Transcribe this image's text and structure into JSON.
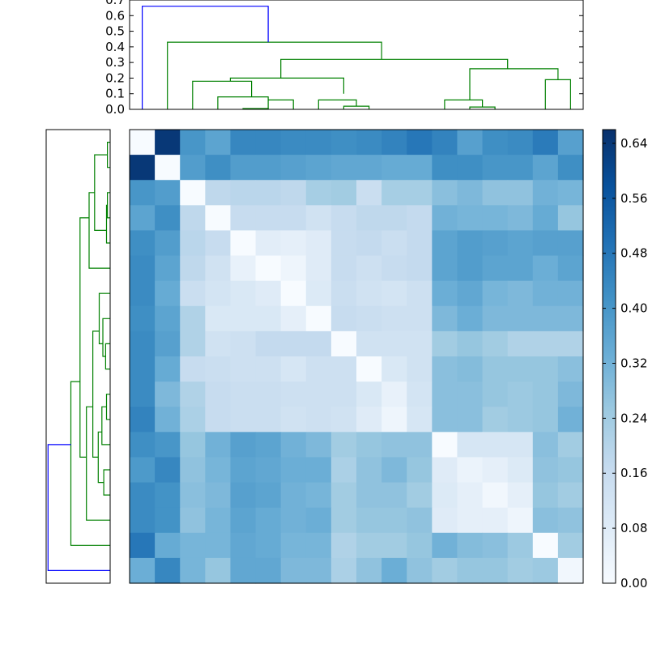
{
  "chart_data": [
    {
      "type": "dendrogram",
      "orientation": "top",
      "yticks": [
        "0.0",
        "0.1",
        "0.2",
        "0.3",
        "0.4",
        "0.5",
        "0.6",
        "0.7"
      ],
      "ylim": [
        0,
        0.7
      ],
      "link_colors": {
        "clusters": "#008000",
        "root": "#0000ff"
      },
      "merge_heights": [
        0.005,
        0.06,
        0.08,
        0.12,
        0.16,
        0.18,
        0.2,
        0.02,
        0.06,
        0.08,
        0.12,
        0.19,
        0.26,
        0.32,
        0.43,
        0.66
      ]
    },
    {
      "type": "dendrogram",
      "orientation": "left",
      "link_colors": {
        "clusters": "#008000",
        "root": "#0000ff"
      }
    },
    {
      "type": "heatmap",
      "colormap": "Blues",
      "n": 18,
      "matrix": [
        [
          0.0,
          0.64,
          0.4,
          0.36,
          0.44,
          0.44,
          0.43,
          0.43,
          0.42,
          0.43,
          0.45,
          0.48,
          0.45,
          0.37,
          0.42,
          0.43,
          0.47,
          0.37
        ],
        [
          0.64,
          0.0,
          0.38,
          0.42,
          0.38,
          0.38,
          0.37,
          0.36,
          0.35,
          0.35,
          0.34,
          0.34,
          0.42,
          0.42,
          0.4,
          0.4,
          0.36,
          0.42
        ],
        [
          0.4,
          0.38,
          0.0,
          0.18,
          0.19,
          0.19,
          0.18,
          0.23,
          0.24,
          0.15,
          0.23,
          0.23,
          0.28,
          0.3,
          0.27,
          0.27,
          0.32,
          0.31
        ],
        [
          0.36,
          0.42,
          0.18,
          0.0,
          0.16,
          0.16,
          0.16,
          0.13,
          0.16,
          0.18,
          0.18,
          0.17,
          0.32,
          0.31,
          0.31,
          0.3,
          0.34,
          0.26
        ],
        [
          0.42,
          0.38,
          0.19,
          0.16,
          0.0,
          0.07,
          0.06,
          0.08,
          0.16,
          0.17,
          0.15,
          0.17,
          0.36,
          0.38,
          0.37,
          0.36,
          0.37,
          0.37
        ],
        [
          0.43,
          0.36,
          0.18,
          0.13,
          0.05,
          0.0,
          0.03,
          0.08,
          0.16,
          0.14,
          0.16,
          0.17,
          0.36,
          0.38,
          0.36,
          0.36,
          0.33,
          0.36
        ],
        [
          0.43,
          0.34,
          0.15,
          0.12,
          0.1,
          0.08,
          0.0,
          0.09,
          0.15,
          0.13,
          0.12,
          0.14,
          0.33,
          0.35,
          0.31,
          0.3,
          0.32,
          0.32
        ],
        [
          0.42,
          0.36,
          0.21,
          0.1,
          0.1,
          0.1,
          0.06,
          0.0,
          0.16,
          0.15,
          0.14,
          0.14,
          0.3,
          0.33,
          0.3,
          0.3,
          0.3,
          0.3
        ],
        [
          0.43,
          0.37,
          0.21,
          0.13,
          0.14,
          0.17,
          0.17,
          0.17,
          0.0,
          0.13,
          0.13,
          0.13,
          0.24,
          0.26,
          0.24,
          0.21,
          0.21,
          0.21
        ],
        [
          0.43,
          0.34,
          0.16,
          0.15,
          0.14,
          0.14,
          0.11,
          0.14,
          0.14,
          0.0,
          0.1,
          0.13,
          0.28,
          0.29,
          0.26,
          0.26,
          0.26,
          0.28
        ],
        [
          0.43,
          0.3,
          0.21,
          0.16,
          0.15,
          0.15,
          0.14,
          0.14,
          0.14,
          0.1,
          0.05,
          0.12,
          0.28,
          0.28,
          0.26,
          0.25,
          0.26,
          0.3
        ],
        [
          0.45,
          0.32,
          0.22,
          0.16,
          0.15,
          0.15,
          0.13,
          0.14,
          0.13,
          0.08,
          0.03,
          0.11,
          0.28,
          0.28,
          0.24,
          0.25,
          0.26,
          0.32
        ],
        [
          0.42,
          0.4,
          0.26,
          0.32,
          0.37,
          0.36,
          0.32,
          0.3,
          0.24,
          0.26,
          0.27,
          0.27,
          0.0,
          0.11,
          0.11,
          0.11,
          0.28,
          0.24
        ],
        [
          0.39,
          0.44,
          0.27,
          0.31,
          0.36,
          0.35,
          0.33,
          0.33,
          0.22,
          0.27,
          0.3,
          0.26,
          0.08,
          0.04,
          0.06,
          0.09,
          0.27,
          0.26
        ],
        [
          0.43,
          0.41,
          0.28,
          0.3,
          0.37,
          0.36,
          0.32,
          0.31,
          0.24,
          0.27,
          0.27,
          0.24,
          0.09,
          0.06,
          0.02,
          0.06,
          0.26,
          0.24
        ],
        [
          0.43,
          0.41,
          0.27,
          0.31,
          0.36,
          0.34,
          0.32,
          0.33,
          0.24,
          0.26,
          0.26,
          0.27,
          0.08,
          0.06,
          0.06,
          0.03,
          0.28,
          0.27
        ],
        [
          0.48,
          0.34,
          0.31,
          0.31,
          0.35,
          0.34,
          0.31,
          0.31,
          0.21,
          0.24,
          0.24,
          0.26,
          0.32,
          0.29,
          0.28,
          0.25,
          0.0,
          0.24
        ],
        [
          0.33,
          0.44,
          0.31,
          0.26,
          0.35,
          0.35,
          0.3,
          0.3,
          0.22,
          0.27,
          0.33,
          0.27,
          0.24,
          0.26,
          0.26,
          0.24,
          0.25,
          0.02
        ]
      ]
    },
    {
      "type": "colorbar",
      "ticks": [
        "0.00",
        "0.08",
        "0.16",
        "0.24",
        "0.32",
        "0.40",
        "0.48",
        "0.56",
        "0.64"
      ],
      "range": [
        0,
        0.66
      ]
    }
  ]
}
